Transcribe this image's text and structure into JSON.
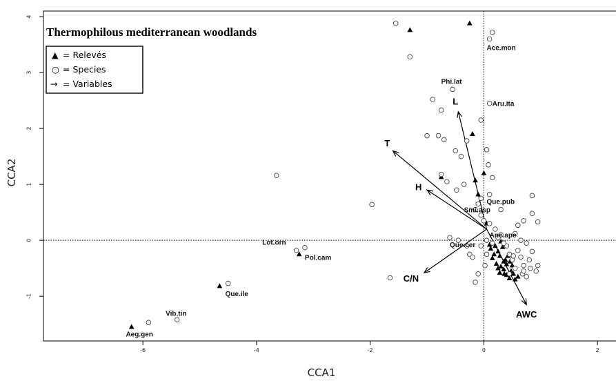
{
  "chart_data": {
    "type": "scatter",
    "title": "Thermophilous mediterranean woodlands",
    "xlabel": "CCA1",
    "ylabel": "CCA2",
    "xlim": [
      -7.75,
      2.35
    ],
    "ylim": [
      -1.8,
      4.1
    ],
    "x_ticks": [
      -6,
      -4,
      -2,
      0,
      2
    ],
    "y_ticks": [
      -1,
      0,
      1,
      2,
      3,
      4
    ],
    "x_tick_labels": [
      "-6",
      "-4",
      "-2",
      "0",
      "2"
    ],
    "y_tick_labels": [
      "-1",
      "0",
      "1",
      "2",
      "3",
      "4"
    ],
    "reference_lines": {
      "x": 0,
      "y": 0
    },
    "legend": {
      "placement": "top-left",
      "entries": [
        {
          "symbol": "▲",
          "text": "= Relevés"
        },
        {
          "symbol": "○",
          "text": "= Species"
        },
        {
          "symbol": "→",
          "text": "= Variables"
        }
      ]
    },
    "series": [
      {
        "name": "Relevés",
        "marker": "filled-triangle",
        "points": [
          [
            -6.2,
            -1.55
          ],
          [
            -4.65,
            -0.82
          ],
          [
            -3.25,
            -0.25
          ],
          [
            -1.3,
            3.76
          ],
          [
            -0.25,
            3.88
          ],
          [
            -0.75,
            1.13
          ],
          [
            -0.2,
            1.9
          ],
          [
            -0.15,
            1.07
          ],
          [
            0.0,
            1.2
          ],
          [
            -0.1,
            0.82
          ],
          [
            0.05,
            0.3
          ],
          [
            0.3,
            -0.02
          ],
          [
            0.2,
            -0.1
          ],
          [
            0.12,
            -0.15
          ],
          [
            0.25,
            -0.2
          ],
          [
            0.28,
            -0.28
          ],
          [
            0.15,
            -0.32
          ],
          [
            0.35,
            -0.38
          ],
          [
            0.22,
            -0.42
          ],
          [
            0.3,
            -0.47
          ],
          [
            0.4,
            -0.43
          ],
          [
            0.35,
            -0.52
          ],
          [
            0.48,
            -0.55
          ],
          [
            0.28,
            -0.58
          ],
          [
            0.4,
            -0.62
          ],
          [
            0.52,
            -0.6
          ],
          [
            0.6,
            -0.65
          ],
          [
            0.45,
            -0.68
          ],
          [
            0.55,
            -0.7
          ],
          [
            0.38,
            -0.35
          ],
          [
            0.18,
            -0.25
          ],
          [
            0.33,
            -0.12
          ],
          [
            0.42,
            -0.28
          ],
          [
            0.5,
            -0.45
          ],
          [
            0.25,
            -0.5
          ],
          [
            0.1,
            -0.08
          ],
          [
            0.46,
            -0.38
          ],
          [
            0.36,
            -0.6
          ]
        ]
      },
      {
        "name": "Species",
        "marker": "open-circle",
        "points": [
          [
            -5.9,
            -1.47
          ],
          [
            -5.4,
            -1.42
          ],
          [
            -4.5,
            -0.77
          ],
          [
            -3.3,
            -0.18
          ],
          [
            -3.15,
            -0.13
          ],
          [
            -3.65,
            1.16
          ],
          [
            -1.97,
            0.64
          ],
          [
            -1.65,
            -0.67
          ],
          [
            -1.55,
            3.88
          ],
          [
            -1.3,
            3.28
          ],
          [
            -0.55,
            2.7
          ],
          [
            -0.9,
            2.52
          ],
          [
            -0.75,
            2.33
          ],
          [
            -1.0,
            1.87
          ],
          [
            -0.8,
            1.87
          ],
          [
            -0.7,
            1.8
          ],
          [
            -0.5,
            1.6
          ],
          [
            -0.3,
            1.78
          ],
          [
            -0.4,
            1.5
          ],
          [
            -0.75,
            1.18
          ],
          [
            -0.65,
            1.05
          ],
          [
            -0.35,
            1.0
          ],
          [
            -0.48,
            0.9
          ],
          [
            -0.6,
            0.05
          ],
          [
            -0.45,
            0.0
          ],
          [
            -0.3,
            -0.1
          ],
          [
            -0.25,
            -0.25
          ],
          [
            -0.2,
            -0.3
          ],
          [
            -0.15,
            0.55
          ],
          [
            -0.1,
            0.65
          ],
          [
            -0.05,
            0.75
          ],
          [
            0.1,
            0.82
          ],
          [
            -0.05,
            2.15
          ],
          [
            0.05,
            1.62
          ],
          [
            0.08,
            1.35
          ],
          [
            0.15,
            1.12
          ],
          [
            0.1,
            3.6
          ],
          [
            0.15,
            3.72
          ],
          [
            0.1,
            2.45
          ],
          [
            0.85,
            0.8
          ],
          [
            0.85,
            0.48
          ],
          [
            0.95,
            0.33
          ],
          [
            0.7,
            0.35
          ],
          [
            0.6,
            0.27
          ],
          [
            0.55,
            0.12
          ],
          [
            0.65,
            0.0
          ],
          [
            0.75,
            -0.05
          ],
          [
            0.85,
            -0.2
          ],
          [
            0.8,
            -0.35
          ],
          [
            0.65,
            -0.3
          ],
          [
            0.7,
            -0.45
          ],
          [
            0.82,
            -0.5
          ],
          [
            0.68,
            -0.6
          ],
          [
            0.75,
            -0.65
          ],
          [
            0.95,
            -0.45
          ],
          [
            0.92,
            -0.55
          ],
          [
            0.55,
            -0.5
          ],
          [
            0.5,
            -0.35
          ],
          [
            0.45,
            -0.25
          ],
          [
            0.6,
            -0.18
          ],
          [
            0.4,
            -0.1
          ],
          [
            0.3,
            0.1
          ],
          [
            0.2,
            0.2
          ],
          [
            0.1,
            0.3
          ],
          [
            0.25,
            0.05
          ],
          [
            0.15,
            -0.05
          ],
          [
            0.05,
            0.0
          ],
          [
            -0.05,
            -0.1
          ],
          [
            0.05,
            -0.25
          ],
          [
            0.02,
            -0.45
          ],
          [
            -0.1,
            -0.6
          ],
          [
            -0.15,
            -0.75
          ],
          [
            0.35,
            -0.05
          ],
          [
            0.52,
            -0.28
          ],
          [
            0.45,
            -0.6
          ],
          [
            0.7,
            -0.55
          ],
          [
            0.3,
            0.55
          ],
          [
            -0.05,
            0.45
          ],
          [
            0.0,
            0.35
          ]
        ]
      }
    ],
    "species_labels": [
      {
        "text": "Ace.mon",
        "x": 0.05,
        "y": 3.4
      },
      {
        "text": "Phi.lat",
        "x": -0.75,
        "y": 2.8
      },
      {
        "text": "Aru.ita",
        "x": 0.15,
        "y": 2.4
      },
      {
        "text": "Smi.asp",
        "x": -0.35,
        "y": 0.5
      },
      {
        "text": "Que.pub",
        "x": 0.05,
        "y": 0.65
      },
      {
        "text": "Ane.ape",
        "x": 0.1,
        "y": 0.05
      },
      {
        "text": "Que.cer",
        "x": -0.6,
        "y": -0.12
      },
      {
        "text": "Lot.orn",
        "x": -3.9,
        "y": -0.08
      },
      {
        "text": "Pol.cam",
        "x": -3.15,
        "y": -0.35
      },
      {
        "text": "Que.ile",
        "x": -4.55,
        "y": -1.0
      },
      {
        "text": "Vib.tin",
        "x": -5.6,
        "y": -1.35
      },
      {
        "text": "Aeg.gen",
        "x": -6.3,
        "y": -1.72
      }
    ],
    "variables": [
      {
        "name": "L",
        "x1": 0.05,
        "y1": 0.2,
        "x2": -0.45,
        "y2": 2.3,
        "label_x": -0.5,
        "label_y": 2.43
      },
      {
        "name": "T",
        "x1": 0.05,
        "y1": 0.2,
        "x2": -1.6,
        "y2": 1.6,
        "label_x": -1.7,
        "label_y": 1.68
      },
      {
        "name": "H",
        "x1": 0.05,
        "y1": 0.2,
        "x2": -1.0,
        "y2": 0.9,
        "label_x": -1.15,
        "label_y": 0.9
      },
      {
        "name": "C/N",
        "x1": 0.05,
        "y1": 0.2,
        "x2": -1.05,
        "y2": -0.58,
        "label_x": -1.28,
        "label_y": -0.74
      },
      {
        "name": "AWC",
        "x1": 0.05,
        "y1": 0.2,
        "x2": 0.75,
        "y2": -1.15,
        "label_x": 0.75,
        "label_y": -1.38
      }
    ]
  }
}
